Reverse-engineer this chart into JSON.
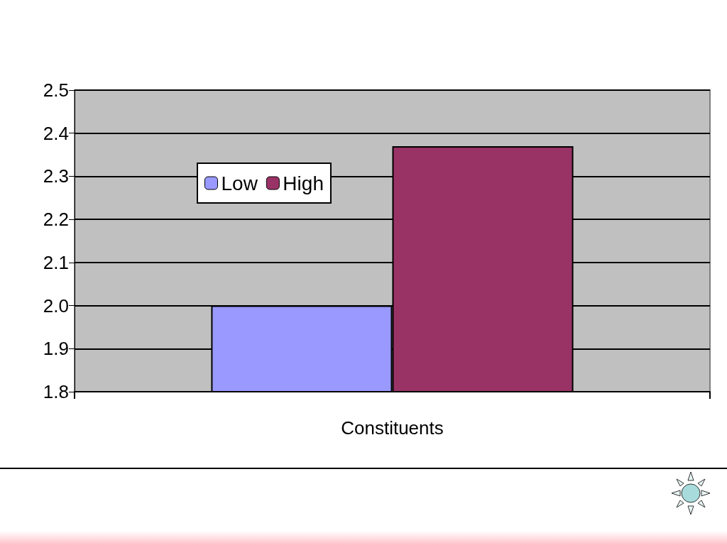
{
  "chart_data": {
    "type": "bar",
    "categories": [
      "Constituents"
    ],
    "series": [
      {
        "name": "Low",
        "color": "#9999ff",
        "values": [
          2.0
        ]
      },
      {
        "name": "High",
        "color": "#993366",
        "values": [
          2.37
        ]
      }
    ],
    "ylim": [
      1.8,
      2.5
    ],
    "yticks": [
      1.8,
      1.9,
      {
        "value": 2.0,
        "label": "2.0"
      },
      2.1,
      2.2,
      2.3,
      2.4,
      2.5
    ],
    "grid": "y",
    "legend": "top left"
  }
}
